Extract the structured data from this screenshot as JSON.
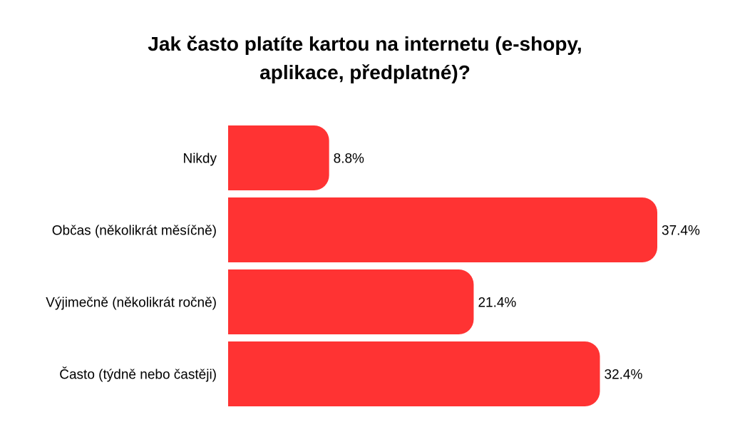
{
  "chart_data": {
    "type": "bar",
    "orientation": "horizontal",
    "title_lines": [
      "Jak často platíte kartou na internetu (e-shopy,",
      "aplikace, předplatné)?"
    ],
    "categories": [
      "Nikdy",
      "Občas (několikrát měsíčně)",
      "Výjimečně (několikrát ročně)",
      "Často (týdně nebo častěji)"
    ],
    "values": [
      8.8,
      37.4,
      21.4,
      32.4
    ],
    "value_labels": [
      "8.8%",
      "37.4%",
      "21.4%",
      "32.4%"
    ],
    "unit": "%",
    "xlim": [
      0,
      37.4
    ],
    "grid": false,
    "legend": "none",
    "bar_color": "#ff3333"
  }
}
